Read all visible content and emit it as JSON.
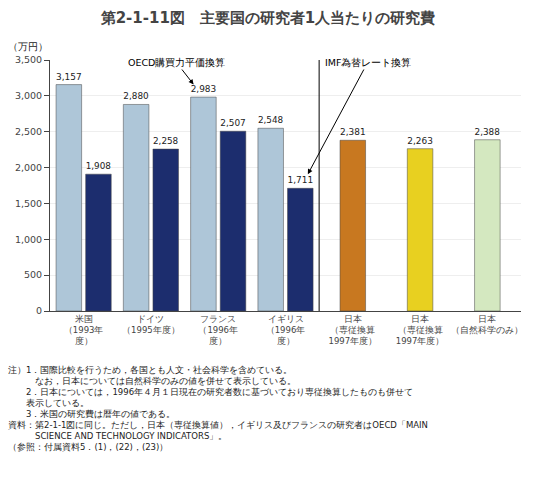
{
  "chart_data": {
    "type": "bar",
    "title": "第2-1-11図　主要国の研究者1人当たりの研究費",
    "ylabel": "（万円）",
    "categories": [
      "米国\n（1993年\n度）",
      "ドイツ\n（1995年度）",
      "フランス\n（1996年\n度）",
      "イギリス\n（1996年\n度）",
      "日本\n（専従換算\n1997年度）",
      "日本\n（専従換算\n1997年度）",
      "日本\n（自然科学のみ）"
    ],
    "series": [
      {
        "colors": [
          "#aec6d8",
          "#aec6d8",
          "#aec6d8",
          "#aec6d8",
          "#c87820",
          "#e8d020",
          "#d4e8c0"
        ],
        "values": [
          3157,
          2880,
          2983,
          2548,
          2381,
          2263,
          2388
        ],
        "value_labels": [
          "3,157",
          "2,880",
          "2,983",
          "2,548",
          "2,381",
          "2,263",
          "2,388"
        ]
      },
      {
        "color": "#1c2d6e",
        "values": [
          1908,
          2258,
          2507,
          1711,
          null,
          null,
          null
        ],
        "value_labels": [
          "1,908",
          "2,258",
          "2,507",
          "1,711",
          null,
          null,
          null
        ]
      }
    ],
    "ylim": [
      0,
      3500
    ],
    "yticks": [
      0,
      500,
      {
        "value": 1000,
        "label": "1,000"
      },
      {
        "value": 1500,
        "label": "1,500"
      },
      {
        "value": 2000,
        "label": "2,000"
      },
      {
        "value": 2500,
        "label": "2,500"
      },
      {
        "value": 3000,
        "label": "3,000"
      },
      {
        "value": 3500,
        "label": "3,500"
      }
    ],
    "grid": true,
    "data_labels": true,
    "annotations": [
      {
        "text": "OECD購買力平価換算",
        "category": "フランス\n（1996年\n度）",
        "y": 2983
      },
      {
        "text": "IMF為替レート換算",
        "category": "イギリス\n（1996年\n度）",
        "y": 1711
      }
    ],
    "notes": [
      "注）1．国際比較を行うため，各国とも人文・社会科学を含めている。",
      "　　　なお，日本については自然科学のみの値を併せて表示している。",
      "　　2．日本については，1996年４月１日現在の研究者数に基づいており専従換算したものも併せて",
      "　　表示している。",
      "　　3．米国の研究費は暦年の値である。",
      "資料：第2-1-1図に同じ。ただし，日本（専従換算値），イギリス及びフランスの研究者はOECD「MAIN",
      "　　　SCIENCE AND TECHNOLOGY INDICATORS」。",
      "（参照：付属資料5．(1)，(22)，(23)）"
    ]
  }
}
